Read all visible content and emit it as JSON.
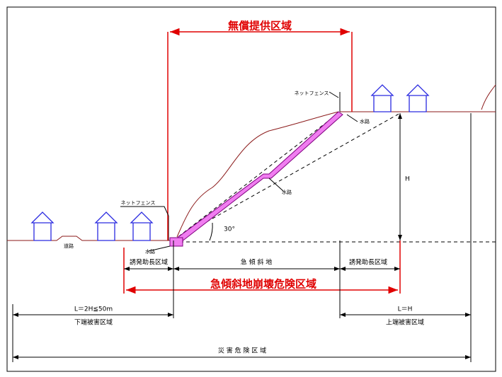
{
  "labels": {
    "free_area": "無償提供区域",
    "net_fence_top": "ネットフェンス",
    "waterway_top": "水路",
    "waterway_mid": "水路",
    "height": "H",
    "net_fence_left": "ネットフェンス",
    "angle": "30°",
    "road": "道路",
    "waterway_bottom": "水路",
    "induce_left": "誘発助長区域",
    "steep_slope": "急 傾 斜 地",
    "induce_right": "誘発助長区域",
    "collapse_area": "急傾斜地崩壊危険区域",
    "lower_length": "L＝2H≦50m",
    "lower_damage": "下端被害区域",
    "upper_length": "L＝H",
    "upper_damage": "上端被害区域",
    "disaster_area": "災 害 危 険 区 域"
  }
}
